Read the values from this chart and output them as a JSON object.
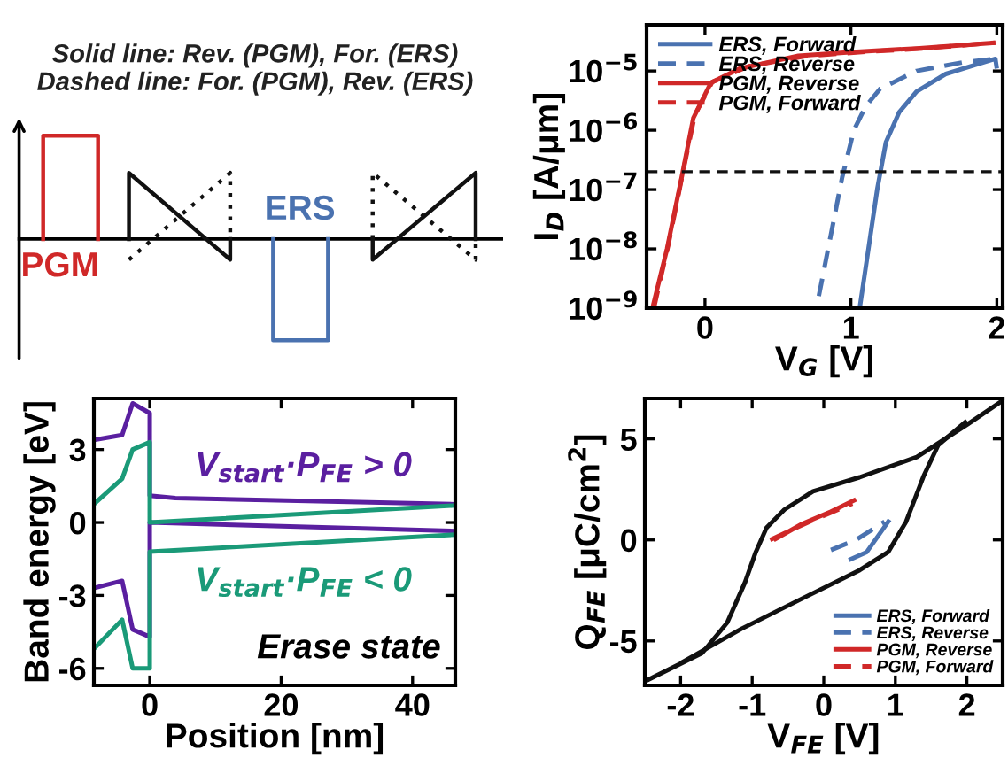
{
  "chart_data": [
    {
      "type": "other",
      "title": "Solid line: Rev. (PGM), For. (ERS)\nDashed line: For. (PGM), Rev. (ERS)",
      "annotations": [
        "PGM",
        "ERS"
      ]
    },
    {
      "type": "line",
      "xlabel": "V$_{G}$ [V]",
      "ylabel": "I$_{D}$ [A/μm]",
      "log": "y",
      "marker": "none",
      "legend": "top left",
      "xlim": [
        -0.4,
        2.04
      ],
      "xticks": [
        0,
        1,
        2
      ],
      "ylim": [
        1e-09,
        6e-05
      ],
      "yticks": [
        {
          "value": 1e-09,
          "label": "10$^{−9}$"
        },
        {
          "value": 1e-08,
          "label": "10$^{−8}$"
        },
        {
          "value": 1e-07,
          "label": "10$^{−7}$"
        },
        {
          "value": 1e-06,
          "label": "10$^{−6}$"
        },
        {
          "value": 1e-05,
          "label": "10$^{−5}$"
        }
      ],
      "ref_lines": [
        {
          "axis": "y",
          "value": 2e-07,
          "color": "#111111",
          "line_style": "dashed"
        }
      ],
      "series": [
        {
          "name": "ERS, Forward",
          "color": "#4a72b0",
          "x": [
            1.06,
            1.12,
            1.18,
            1.24,
            1.33,
            1.45,
            1.65,
            1.85,
            1.99,
            2.0
          ],
          "values": [
            1e-09,
            1e-08,
            1e-07,
            6.3e-07,
            2e-06,
            4.5e-06,
            8.9e-06,
            1.26e-05,
            1.6e-05,
            1.1e-05
          ]
        },
        {
          "name": "ERS, Reverse",
          "color": "#4a72b0",
          "line_style": "dashed",
          "x": [
            0.78,
            0.86,
            0.94,
            1.02,
            1.1,
            1.2,
            1.45,
            1.77,
            1.99
          ],
          "values": [
            1.6e-09,
            1.6e-08,
            1.6e-07,
            1e-06,
            2.5e-06,
            5e-06,
            1e-05,
            1.4e-05,
            1.6e-05
          ]
        },
        {
          "name": "PGM, Reverse",
          "color": "#d02828",
          "x": [
            -0.36,
            -0.26,
            -0.16,
            -0.08,
            0.04,
            0.24,
            0.64,
            1.04,
            1.45,
            1.99
          ],
          "values": [
            1e-09,
            1e-08,
            1.6e-07,
            1.6e-06,
            6.3e-06,
            1.1e-05,
            1.8e-05,
            2.1e-05,
            2.4e-05,
            3e-05
          ]
        },
        {
          "name": "PGM, Forward",
          "color": "#d02828",
          "line_style": "dashed",
          "x": [
            -0.35,
            -0.25,
            -0.15,
            -0.07,
            0.05,
            0.3,
            0.7,
            1.1,
            1.5,
            1.99
          ],
          "values": [
            1e-09,
            1.2e-08,
            2e-07,
            1.8e-06,
            6.5e-06,
            1.2e-05,
            1.8e-05,
            2.1e-05,
            2.4e-05,
            3e-05
          ]
        }
      ]
    },
    {
      "type": "line",
      "xlabel": "Position [nm]",
      "ylabel": "Band energy [eV]",
      "marker": "none",
      "xlim": [
        -8.5,
        46.5
      ],
      "xticks": [
        0,
        20,
        40
      ],
      "ylim": [
        -6.7,
        5.1
      ],
      "yticks": [
        -6,
        -3,
        0,
        3
      ],
      "annotations": [
        "Erase state"
      ],
      "series": [
        {
          "name": "V$_{start}$·P$_{FE}$ > 0",
          "color": "#5a1fa0",
          "x": [
            -8.5,
            -4.2,
            -2.6,
            0,
            0,
            3.9,
            46.5
          ],
          "values": [
            3.4,
            3.6,
            4.9,
            4.5,
            1.1,
            1.0,
            0.75
          ]
        },
        {
          "color": "#5a1fa0",
          "x": [
            -8.5,
            -4.2,
            -2.6,
            0,
            0,
            46.5
          ],
          "values": [
            -2.7,
            -2.4,
            -4.4,
            -4.7,
            0,
            -0.35
          ]
        },
        {
          "name": "V$_{start}$·P$_{FE}$ < 0",
          "color": "#1a9a78",
          "x": [
            -8.5,
            -4.2,
            -2.6,
            0,
            0,
            46.5
          ],
          "values": [
            0.75,
            1.8,
            3.0,
            3.3,
            0,
            0.7
          ]
        },
        {
          "color": "#1a9a78",
          "x": [
            -8.5,
            -4.2,
            -2.6,
            0,
            0,
            46.5
          ],
          "values": [
            -5.2,
            -4.0,
            -6.0,
            -6.0,
            -1.2,
            -0.5
          ]
        }
      ]
    },
    {
      "type": "line",
      "xlabel": "V$_{FE}$ [V]",
      "ylabel": "Q$_{FE}$ [μC/cm$^{2}$]",
      "marker": "none",
      "legend": "bottom right",
      "xlim": [
        -2.5,
        2.5
      ],
      "xticks": [
        -2,
        -1,
        0,
        1,
        2
      ],
      "ylim": [
        -7.2,
        7.0
      ],
      "yticks": [
        -5,
        0,
        5
      ],
      "series": [
        {
          "color": "#111111",
          "x": [
            -2.5,
            -1.7,
            -1.35,
            -1.1,
            -0.95,
            -0.8,
            -0.55,
            -0.15,
            0.5,
            1.3,
            2.0,
            2.5
          ],
          "values": [
            -7.0,
            -5.6,
            -4.1,
            -2.1,
            -0.6,
            0.6,
            1.5,
            2.4,
            3.1,
            4.1,
            5.7,
            6.9
          ]
        },
        {
          "color": "#111111",
          "x": [
            -2.0,
            -1.15,
            -0.3,
            0.5,
            0.9,
            1.15,
            1.4,
            1.6,
            2.0
          ],
          "values": [
            -6.1,
            -4.4,
            -2.9,
            -1.5,
            -0.6,
            0.9,
            3.2,
            4.7,
            5.9
          ]
        },
        {
          "name": "ERS, Forward",
          "color": "#4a72b0",
          "x": [
            0.35,
            0.6,
            0.92
          ],
          "values": [
            -1.0,
            -0.6,
            1.0
          ]
        },
        {
          "name": "ERS, Reverse",
          "color": "#4a72b0",
          "line_style": "dashed",
          "x": [
            0.1,
            0.45,
            0.85
          ],
          "values": [
            -0.5,
            0,
            0.9
          ]
        },
        {
          "name": "PGM, Reverse",
          "color": "#d02828",
          "x": [
            -0.7,
            -0.3,
            0.1,
            0.45
          ],
          "values": [
            0,
            0.8,
            1.4,
            2.0
          ]
        },
        {
          "name": "PGM, Forward",
          "color": "#d02828",
          "line_style": "dashed",
          "x": [
            -0.75,
            -0.2,
            0.4
          ],
          "values": [
            0,
            0.9,
            1.8
          ]
        }
      ]
    }
  ]
}
